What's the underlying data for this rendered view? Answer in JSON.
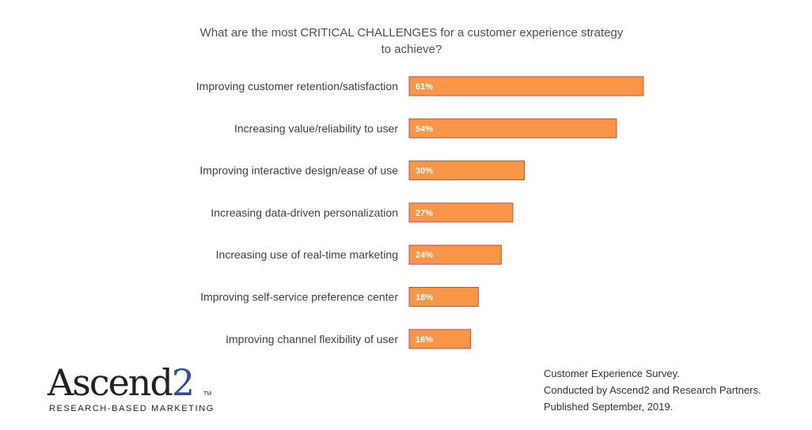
{
  "chart_data": {
    "type": "bar",
    "orientation": "horizontal",
    "title": "What are the most CRITICAL CHALLENGES for a customer experience strategy to achieve?",
    "categories": [
      "Improving customer retention/satisfaction",
      "Increasing value/reliability to user",
      "Improving interactive design/ease of use",
      "Increasing data-driven personalization",
      "Increasing use of real-time marketing",
      "Improving self-service preference center",
      "Improving channel flexibility of user"
    ],
    "values": [
      61,
      54,
      30,
      27,
      24,
      18,
      16
    ],
    "value_labels": [
      "61%",
      "54%",
      "30%",
      "27%",
      "24%",
      "18%",
      "16%"
    ],
    "unit": "%",
    "xlim": [
      0,
      100
    ],
    "grid": false,
    "bar_color": "#f79646",
    "bar_edge_color": "#c0504d"
  },
  "title_lines": [
    "What are the most CRITICAL CHALLENGES for a customer experience strategy",
    "to achieve?"
  ],
  "logo": {
    "word": "Ascend",
    "digit": "2",
    "tm": "TM",
    "tagline": "RESEARCH-BASED MARKETING",
    "accent_color": "#2f4f9a"
  },
  "footer": {
    "line1": "Customer Experience Survey.",
    "line2": "Conducted  by Ascend2 and Research Partners.",
    "line3": "Published September, 2019."
  }
}
